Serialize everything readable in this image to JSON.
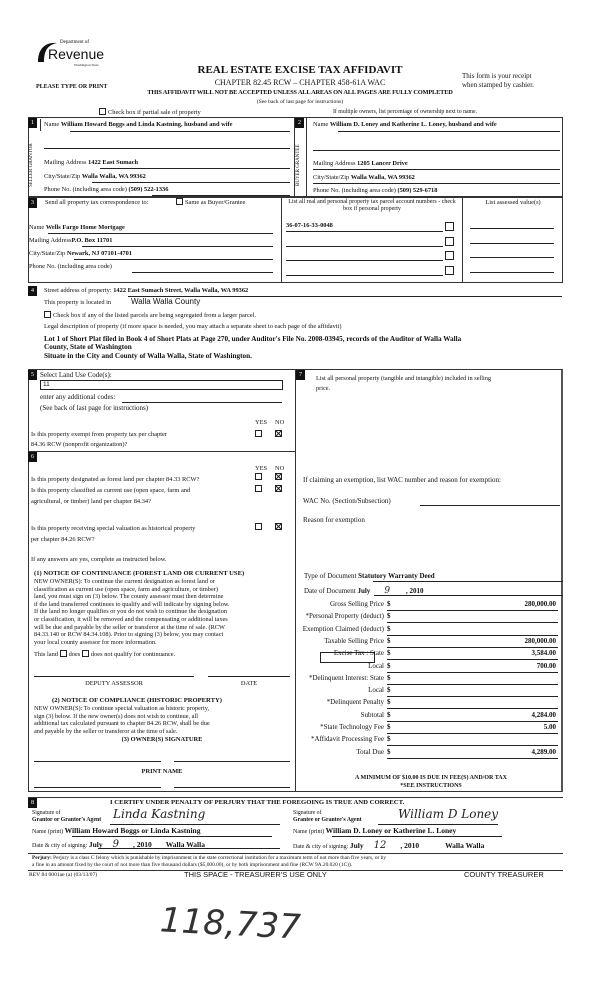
{
  "header": {
    "logo_top": "Department of",
    "logo_main": "Revenue",
    "logo_sub": "Washington State",
    "please": "PLEASE TYPE OR PRINT",
    "title": "REAL ESTATE EXCISE TAX AFFIDAVIT",
    "chapter": "CHAPTER 82.45 RCW – CHAPTER 458-61A WAC",
    "warning": "THIS AFFIDAVIT WILL NOT BE ACCEPTED UNLESS ALL AREAS ON ALL PAGES ARE FULLY COMPLETED",
    "see_back": "(See back of last page for instructions)",
    "receipt1": "This form is your receipt",
    "receipt2": "when stamped by cashier.",
    "partial_sale": "Check box if partial sale of property",
    "multiple_owners": "If multiple owners, list percentage of ownership next to name."
  },
  "seller": {
    "num": "1",
    "side": "SELLER GRANTOR",
    "name_label": "Name",
    "name": "William Howard Boggs and Linda Kastning, husband and wife",
    "addr_label": "Mailing Address",
    "addr": "1422 East Sumach",
    "city_label": "City/State/Zip",
    "city": "Walla Walla, WA  99362",
    "phone_label": "Phone No. (including area code)",
    "phone": "(509) 522-1336"
  },
  "buyer": {
    "num": "2",
    "side": "BUYER GRANTEE",
    "name_label": "Name",
    "name": "William  D. Loney and Katherine  L. Loney, husband and wife",
    "addr_label": "Mailing Address",
    "addr": "1205 Lancer Drive",
    "city_label": "City/State/Zip",
    "city": "Walla Walla, WA  99362",
    "phone_label": "Phone No. (including area code)",
    "phone": "(509) 529-6718"
  },
  "tax_corr": {
    "num": "3",
    "label": "Send all property tax correspondence to:",
    "same_label": "Same as Buyer/Grantee",
    "name_label": "Name",
    "name": "Wells Fargo Home Mortgage",
    "addr_label": "Mailing Address",
    "addr": "P.O. Box 11701",
    "city_label": "City/State/Zip",
    "city": "Newark, NJ 07101-4701",
    "phone_label": "Phone No. (including area code)",
    "parcel_header": "List all real and personal property tax parcel account numbers - check box if personal property",
    "parcels": [
      "36-07-16-33-0048",
      "",
      "",
      ""
    ],
    "assessed_header": "List assessed value(s)"
  },
  "property": {
    "num": "4",
    "street_label": "Street address of property:",
    "street": "1422 East Sumach Street, Walla Walla, WA  99362",
    "located_label": "This property is located in",
    "county": "Walla Walla County",
    "segregated": "Check box if any of the listed parcels are being segregated from a larger parcel.",
    "legal_label": "Legal description of property (if more space is needed, you may attach a separate sheet to each page of the affidavit)",
    "legal1": "Lot 1 of Short Plat filed in Book 4 of Short Plats at Page 270, under Auditor's File No. 2008-03945, records of the Auditor of Walla Walla",
    "legal2": "County, State of Washington",
    "legal3": "Situate in the City and County of Walla Walla, State of Washington."
  },
  "land_use": {
    "num": "5",
    "label": "Select Land Use Code(s):",
    "code": "11",
    "additional": "enter any additional codes:",
    "see_back": "(See back of last page for instructions)",
    "yes": "YES",
    "no": "NO",
    "exempt_q1": "Is this property exempt from property tax per chapter",
    "exempt_q2": "84.36 RCW (nonprofit organization)?"
  },
  "sec6": {
    "num": "6",
    "yes": "YES",
    "no": "NO",
    "q1": "Is this property designated as forest land per chapter 84.33 RCW?",
    "q2a": "Is this property classified as current use (open space, farm and",
    "q2b": "agricultural, or timber) land per chapter 84.34?",
    "q3a": "Is this property receiving special valuation as historical property",
    "q3b": "per chapter 84.26 RCW?",
    "if_yes": "If any answers are yes, complete as instructed below.",
    "n1_title": "(1) NOTICE OF CONTINUANCE (FOREST LAND OR CURRENT USE)",
    "n1_lines": [
      "NEW OWNER(S): To continue the current designation as forest land or",
      "classification as current use (open space, farm and agriculture, or timber)",
      "land, you must sign on (3) below. The county assessor must then determine",
      "if the land transferred continues to qualify and will indicate by signing below.",
      "If the land no longer qualifies or you do not wish to continue the designation",
      "or classification, it will be removed and the compensating or additional taxes",
      "will be due and payable by the seller or transferor at the time of sale. (RCW",
      "84.33.140 or RCW 84.34.108). Prior to signing (3) below, you may contact",
      "your local county assessor for more information."
    ],
    "this_land": "This land",
    "does": "does",
    "does_not": "does not  qualify for continuance.",
    "deputy": "DEPUTY ASSESSOR",
    "date": "DATE",
    "n2_title": "(2) NOTICE OF COMPLIANCE (HISTORIC PROPERTY)",
    "n2_lines": [
      "NEW OWNER(S): To continue special valuation as historic property,",
      "sign (3) below. If the new owner(s) does not wish to continue, all",
      "additional tax calculated pursuant to chapter 84.26 RCW, shall be due",
      "and payable by the seller or transferor at the time of sale."
    ],
    "owner_sig": "(3) OWNER(S) SIGNATURE",
    "print_name": "PRINT NAME"
  },
  "sec7": {
    "num": "7",
    "label1": "List all personal property (tangible and intangible) included in selling",
    "label2": "price.",
    "exemption": "If claiming an exemption, list WAC number and reason for exemption:",
    "wac": "WAC No. (Section/Subsection)",
    "reason": "Reason for exemption",
    "doc_type_label": "Type of Document",
    "doc_type": "Statutory Warranty Deed",
    "doc_date_label": "Date of Document",
    "doc_month": "July",
    "doc_day": "9",
    "doc_year": ", 2010",
    "rows": [
      {
        "label": "Gross Selling Price",
        "amount": "280,000.00"
      },
      {
        "label": "*Personal Property (deduct)",
        "amount": ""
      },
      {
        "label": "Exemption Claimed (deduct)",
        "amount": ""
      },
      {
        "label": "Taxable Selling Price",
        "amount": "280,000.00"
      },
      {
        "label": "Excise Tax : State",
        "amount": "3,584.00"
      },
      {
        "label": "Local",
        "amount": "700.00"
      },
      {
        "label": "*Delinquent Interest:  State",
        "amount": ""
      },
      {
        "label": "Local",
        "amount": ""
      },
      {
        "label": "*Delinquent Penalty",
        "amount": ""
      },
      {
        "label": "Subtotal",
        "amount": "4,284.00"
      },
      {
        "label": "*State Technology Fee",
        "amount": "5.00"
      },
      {
        "label": "*Affidavit Processing Fee",
        "amount": ""
      },
      {
        "label": "Total Due",
        "amount": "4,289.00"
      }
    ],
    "dollar": "$",
    "minimum": "A MINIMUM OF $10.00 IS DUE IN FEE(S) AND/OR TAX",
    "see_instr": "*SEE INSTRUCTIONS"
  },
  "sec8": {
    "num": "8",
    "certify": "I CERTIFY UNDER PENALTY OF PERJURY THAT THE FOREGOING IS TRUE AND CORRECT.",
    "sig_of": "Signature of",
    "grantor_agent": "Grantor or Grantor's Agent",
    "grantee_agent": "Grantee or Grantee's Agent",
    "grantor_sig": "Linda Kastning",
    "grantee_sig": "William D Loney",
    "name_print": "Name (print)",
    "grantor_name": "William Howard Boggs or Linda Kastning",
    "grantee_name": "William D. Loney or Katherine L. Loney",
    "date_city": "Date & city of signing:",
    "grantor_month": "July",
    "grantor_day": "9",
    "grantor_year": ", 2010",
    "grantor_city": "Walla Walla",
    "grantee_month": "July",
    "grantee_day": "12",
    "grantee_year": ", 2010",
    "grantee_city": "Walla Walla",
    "perjury_label": "Perjury:",
    "perjury1": "Perjury is a class C felony which is punishable by imprisonment in the state correctional institution for a maximum term of not more than five years, or by",
    "perjury2": "a fine in an amount fixed by the court of not more than five thousand dollars ($5,000.00), or by both imprisonment and fine (RCW 9A.20.020 (1C)).",
    "rev": "REV 84 0001ae (a) (03/13/07)",
    "treasurer_space": "THIS SPACE - TREASURER'S USE ONLY",
    "county_treasurer": "COUNTY TREASURER"
  },
  "handwritten_number": "118,737"
}
